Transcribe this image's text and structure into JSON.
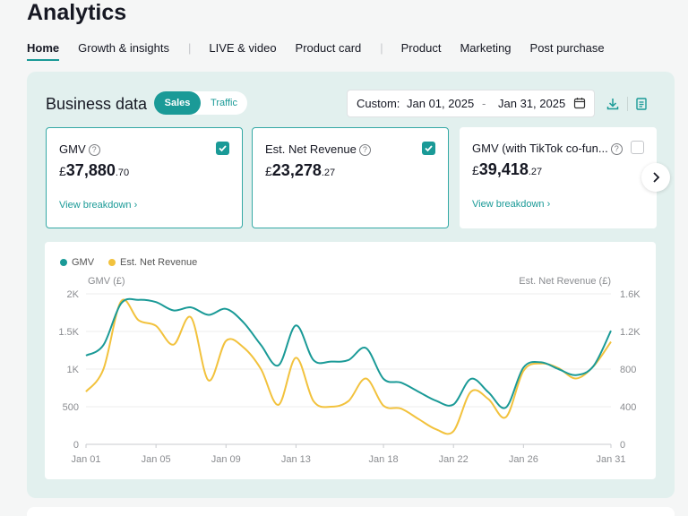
{
  "page_title": "Analytics",
  "tabs": [
    {
      "label": "Home",
      "active": true
    },
    {
      "label": "Growth & insights",
      "active": false
    },
    {
      "label": "LIVE & video",
      "active": false
    },
    {
      "label": "Product card",
      "active": false
    },
    {
      "label": "Product",
      "active": false
    },
    {
      "label": "Marketing",
      "active": false
    },
    {
      "label": "Post purchase",
      "active": false
    }
  ],
  "business": {
    "title": "Business data",
    "toggle": {
      "sales": "Sales",
      "traffic": "Traffic",
      "selected": "Sales"
    },
    "date": {
      "label": "Custom:",
      "start": "Jan 01, 2025",
      "separator": "-",
      "end": "Jan 31, 2025"
    },
    "icons": {
      "calendar": "calendar-icon",
      "download": "download-icon",
      "report": "report-icon"
    }
  },
  "cards": [
    {
      "label": "GMV",
      "currency": "£",
      "value": "37,880",
      "decimals": ".70",
      "checked": true,
      "link": "View breakdown ›"
    },
    {
      "label": "Est. Net Revenue",
      "currency": "£",
      "value": "23,278",
      "decimals": ".27",
      "checked": true,
      "link": ""
    },
    {
      "label": "GMV (with TikTok co-fun...",
      "currency": "£",
      "value": "39,418",
      "decimals": ".27",
      "checked": false,
      "link": "View breakdown ›"
    }
  ],
  "colors": {
    "teal": "#1a9a97",
    "yellow": "#f2c23d"
  },
  "chart_data": {
    "type": "line",
    "legend": [
      "GMV",
      "Est. Net Revenue"
    ],
    "left_axis_label": "GMV (£)",
    "right_axis_label": "Est. Net Revenue (£)",
    "left_ticks": [
      "2K",
      "1.5K",
      "1K",
      "500",
      "0"
    ],
    "right_ticks": [
      "1.6K",
      "1.2K",
      "800",
      "400",
      "0"
    ],
    "left_range": [
      0,
      2000
    ],
    "right_range": [
      0,
      1600
    ],
    "x_ticks": [
      {
        "day": 1,
        "label": "Jan 01"
      },
      {
        "day": 5,
        "label": "Jan 05"
      },
      {
        "day": 9,
        "label": "Jan 09"
      },
      {
        "day": 13,
        "label": "Jan 13"
      },
      {
        "day": 18,
        "label": "Jan 18"
      },
      {
        "day": 22,
        "label": "Jan 22"
      },
      {
        "day": 26,
        "label": "Jan 26"
      },
      {
        "day": 31,
        "label": "Jan 31"
      }
    ],
    "days": [
      1,
      2,
      3,
      4,
      5,
      6,
      7,
      8,
      9,
      10,
      11,
      12,
      13,
      14,
      15,
      16,
      17,
      18,
      19,
      20,
      21,
      22,
      23,
      24,
      25,
      26,
      27,
      28,
      29,
      30,
      31
    ],
    "series": [
      {
        "name": "GMV",
        "axis": "left",
        "color": "#1a9a97",
        "values": [
          1180,
          1320,
          1870,
          1920,
          1890,
          1780,
          1820,
          1720,
          1800,
          1620,
          1320,
          1050,
          1580,
          1120,
          1100,
          1120,
          1280,
          870,
          820,
          700,
          580,
          530,
          870,
          690,
          490,
          1020,
          1090,
          1000,
          920,
          1040,
          1510
        ]
      },
      {
        "name": "Est. Net Revenue",
        "axis": "right",
        "color": "#f2c23d",
        "values": [
          560,
          800,
          1520,
          1320,
          1260,
          1060,
          1350,
          680,
          1100,
          1030,
          800,
          420,
          920,
          460,
          400,
          460,
          700,
          410,
          380,
          270,
          160,
          140,
          560,
          480,
          290,
          780,
          860,
          810,
          700,
          830,
          1090
        ]
      }
    ]
  }
}
